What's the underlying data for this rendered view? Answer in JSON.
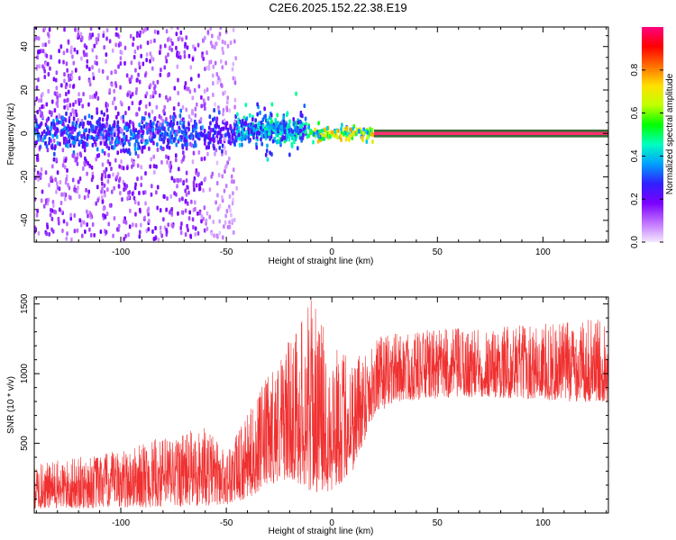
{
  "figure_title": "C2E6.2025.152.22.38.E19",
  "chart_data": [
    {
      "type": "heatmap",
      "title": "C2E6.2025.152.22.38.E19",
      "xlabel": "Height of straight line (km)",
      "ylabel": "Frequency (Hz)",
      "xlim": [
        -141,
        131
      ],
      "ylim": [
        -50,
        49
      ],
      "xticks": [
        -100,
        -50,
        0,
        50,
        100
      ],
      "yticks": [
        -40,
        -20,
        0,
        20,
        40
      ],
      "colorbar": {
        "label": "Normalized spectral amplitude",
        "range": [
          0.0,
          1.0
        ],
        "ticks": [
          "0.0",
          "0.2",
          "0.4",
          "0.6",
          "0.8"
        ],
        "colormap": [
          "#f4e8ff",
          "#c070ff",
          "#7a00ff",
          "#3020ff",
          "#00a0ff",
          "#00ffc0",
          "#00ff00",
          "#c0ff00",
          "#ffe000",
          "#ff7000",
          "#ff0000",
          "#ff0080"
        ]
      },
      "description_regions": [
        {
          "x": [
            -141,
            -45
          ],
          "freq_center": 0,
          "freq_spread": 49,
          "level": 0.2
        },
        {
          "x": [
            -45,
            -12
          ],
          "freq_center": 1,
          "freq_spread": 8,
          "level": 0.45
        },
        {
          "x": [
            -12,
            20
          ],
          "freq_center": 0,
          "freq_spread": 3,
          "level": 0.75
        },
        {
          "x": [
            20,
            131
          ],
          "freq_center": 0,
          "freq_spread": 1,
          "level": 0.9
        }
      ]
    },
    {
      "type": "line",
      "xlabel": "Height of straight line (km)",
      "ylabel": "SNR (10 * v/v)",
      "xlim": [
        -141,
        131
      ],
      "ylim": [
        0,
        1550
      ],
      "xticks": [
        -100,
        -50,
        0,
        50,
        100
      ],
      "yticks": [
        500,
        1000,
        1500
      ],
      "color": "#f03030",
      "envelope": {
        "x": [
          -141,
          -120,
          -100,
          -80,
          -60,
          -50,
          -40,
          -30,
          -20,
          -10,
          0,
          10,
          20,
          30,
          50,
          70,
          90,
          110,
          131
        ],
        "low": [
          30,
          30,
          40,
          40,
          50,
          60,
          100,
          200,
          250,
          150,
          150,
          300,
          700,
          800,
          820,
          830,
          820,
          800,
          800
        ],
        "high": [
          350,
          400,
          450,
          550,
          620,
          450,
          700,
          1000,
          1250,
          1550,
          1200,
          1150,
          1250,
          1300,
          1320,
          1330,
          1350,
          1380,
          1400
        ]
      }
    }
  ]
}
